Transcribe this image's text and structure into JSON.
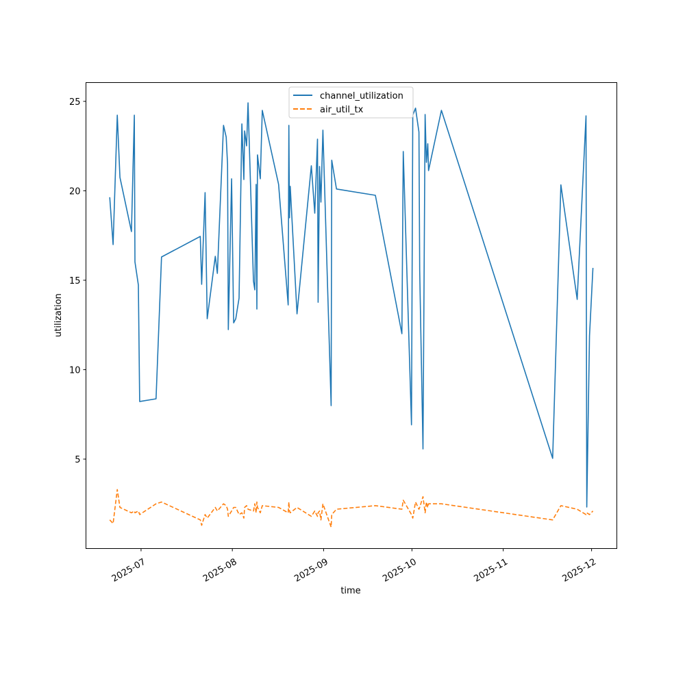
{
  "chart_data": {
    "type": "line",
    "title": "",
    "xlabel": "time",
    "ylabel": "utilization",
    "xlim": [
      "2025-06-12T07:00",
      "2025-12-09T14:00"
    ],
    "ylim": [
      0.0,
      26.05
    ],
    "grid": false,
    "legend_placement": "upper center",
    "x_ticks": [
      "2025-07",
      "2025-08",
      "2025-09",
      "2025-10",
      "2025-11",
      "2025-12"
    ],
    "x_tick_dates": [
      "2025-07-01",
      "2025-08-01",
      "2025-09-01",
      "2025-10-01",
      "2025-11-01",
      "2025-12-01"
    ],
    "y_ticks": [
      5,
      10,
      15,
      20,
      25
    ],
    "y_tick_labels": [
      "5",
      "10",
      "15",
      "20",
      "25"
    ],
    "x": [
      "2025-06-20T09:00",
      "2025-06-21T12:00",
      "2025-06-22T22:00",
      "2025-06-23T20:00",
      "2025-06-27T18:00",
      "2025-06-28T17:00",
      "2025-06-28T22:00",
      "2025-06-30T02:00",
      "2025-06-30T13:00",
      "2025-07-06T02:00",
      "2025-07-07T23:00",
      "2025-07-21T03:00",
      "2025-07-21T14:00",
      "2025-07-22T18:00",
      "2025-07-23T11:00",
      "2025-07-26T05:00",
      "2025-07-26T22:00",
      "2025-07-29T00:00",
      "2025-07-29T22:00",
      "2025-07-30T09:00",
      "2025-07-30T15:00",
      "2025-07-31T18:00",
      "2025-08-01T11:00",
      "2025-08-02T04:00",
      "2025-08-03T07:00",
      "2025-08-04T06:00",
      "2025-08-04T22:00",
      "2025-08-05T04:00",
      "2025-08-05T20:00",
      "2025-08-06T08:00",
      "2025-08-08T04:00",
      "2025-08-08T15:00",
      "2025-08-09T02:00",
      "2025-08-09T08:00",
      "2025-08-09T13:00",
      "2025-08-10T12:00",
      "2025-08-11T04:00",
      "2025-08-16T17:00",
      "2025-08-19T23:00",
      "2025-08-20T05:00",
      "2025-08-20T10:00",
      "2025-08-20T16:00",
      "2025-08-22T23:00",
      "2025-08-27T20:00",
      "2025-08-29T00:00",
      "2025-08-29T22:00",
      "2025-08-30T03:00",
      "2025-08-30T15:00",
      "2025-08-31T02:00",
      "2025-08-31T18:00",
      "2025-09-03T13:00",
      "2025-09-03T18:00",
      "2025-09-05T09:00",
      "2025-09-18T14:00",
      "2025-09-27T14:00",
      "2025-09-28T01:00",
      "2025-09-30T20:00",
      "2025-10-01T07:00",
      "2025-10-02T05:00",
      "2025-10-03T09:00",
      "2025-10-03T15:00",
      "2025-10-04T18:00",
      "2025-10-05T11:00",
      "2025-10-05T22:00",
      "2025-10-06T09:00",
      "2025-10-06T15:00",
      "2025-10-11T00:00",
      "2025-11-17T19:00",
      "2025-11-20T14:00",
      "2025-11-26T03:00",
      "2025-11-29T03:00",
      "2025-11-29T09:00",
      "2025-11-30T07:00",
      "2025-12-01T11:00"
    ],
    "series": [
      {
        "name": "channel_utilization",
        "color": "#1f77b4",
        "style": "solid",
        "values": [
          19.64,
          16.99,
          24.23,
          20.75,
          17.72,
          24.23,
          16.03,
          14.73,
          8.22,
          8.37,
          16.3,
          17.45,
          14.77,
          19.9,
          12.85,
          16.34,
          15.38,
          23.66,
          23.01,
          21.48,
          12.24,
          20.67,
          12.62,
          12.85,
          14.0,
          23.74,
          20.63,
          23.35,
          22.51,
          24.92,
          14.96,
          14.46,
          20.36,
          13.39,
          22.01,
          20.67,
          24.5,
          20.36,
          13.62,
          23.66,
          18.49,
          20.25,
          13.12,
          21.4,
          18.75,
          22.89,
          13.77,
          21.36,
          19.37,
          23.39,
          7.99,
          21.71,
          20.1,
          19.75,
          12.01,
          22.2,
          6.92,
          24.23,
          24.62,
          23.28,
          15.54,
          5.57,
          24.27,
          21.59,
          22.63,
          21.13,
          24.5,
          5.04,
          20.33,
          13.93,
          24.19,
          2.32,
          11.9,
          15.69
        ]
      },
      {
        "name": "air_util_tx",
        "color": "#ff7f0e",
        "style": "dashed",
        "values": [
          1.6,
          1.4,
          3.3,
          2.3,
          2.0,
          2.1,
          2.0,
          2.1,
          1.9,
          2.5,
          2.6,
          1.6,
          1.3,
          1.9,
          1.7,
          2.3,
          2.1,
          2.5,
          2.4,
          2.2,
          1.8,
          2.1,
          2.3,
          2.3,
          1.9,
          2.0,
          1.7,
          2.3,
          2.4,
          2.2,
          2.1,
          2.5,
          2.0,
          2.6,
          2.3,
          2.0,
          2.4,
          2.3,
          2.0,
          2.6,
          2.1,
          2.0,
          2.3,
          1.8,
          2.1,
          1.8,
          2.0,
          2.1,
          1.6,
          2.5,
          1.2,
          1.9,
          2.2,
          2.4,
          2.2,
          2.7,
          1.9,
          1.7,
          2.6,
          2.2,
          2.3,
          2.9,
          2.0,
          2.6,
          2.3,
          2.5,
          2.5,
          1.6,
          2.4,
          2.2,
          1.9,
          2.0,
          1.9,
          2.1
        ]
      }
    ]
  }
}
